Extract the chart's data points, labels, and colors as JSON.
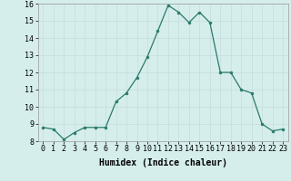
{
  "x": [
    0,
    1,
    2,
    3,
    4,
    5,
    6,
    7,
    8,
    9,
    10,
    11,
    12,
    13,
    14,
    15,
    16,
    17,
    18,
    19,
    20,
    21,
    22,
    23
  ],
  "y": [
    8.8,
    8.7,
    8.1,
    8.5,
    8.8,
    8.8,
    8.8,
    10.3,
    10.8,
    11.7,
    12.9,
    14.4,
    15.9,
    15.5,
    14.9,
    15.5,
    14.9,
    12.0,
    12.0,
    11.0,
    10.8,
    9.0,
    8.6,
    8.7
  ],
  "xlabel": "Humidex (Indice chaleur)",
  "ylim": [
    8,
    16
  ],
  "xlim_min": -0.5,
  "xlim_max": 23.5,
  "yticks": [
    8,
    9,
    10,
    11,
    12,
    13,
    14,
    15,
    16
  ],
  "xticks": [
    0,
    1,
    2,
    3,
    4,
    5,
    6,
    7,
    8,
    9,
    10,
    11,
    12,
    13,
    14,
    15,
    16,
    17,
    18,
    19,
    20,
    21,
    22,
    23
  ],
  "line_color": "#2A7A6A",
  "marker_color": "#2A7A6A",
  "bg_color": "#D5EEEC",
  "grid_color": "#C4DEDD",
  "xlabel_fontsize": 7,
  "tick_fontsize": 6,
  "line_width": 0.9,
  "marker_size": 2.0
}
